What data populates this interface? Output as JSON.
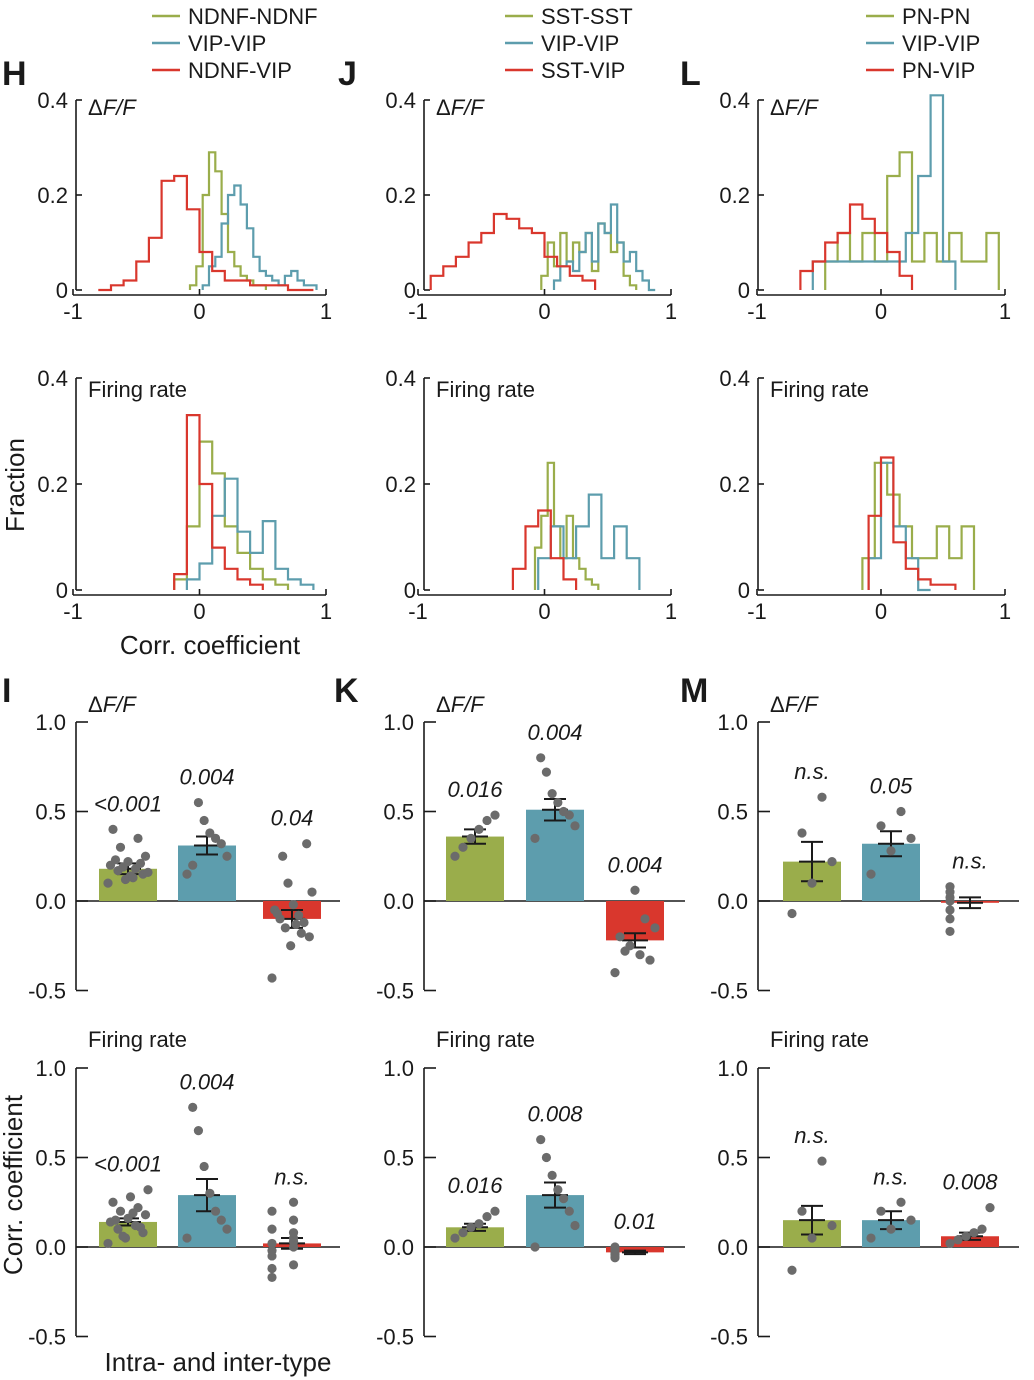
{
  "colors": {
    "green": "#9aad4b",
    "blue": "#5d9dad",
    "red": "#d9372d",
    "dot": "#6b6b6b",
    "axis": "#1a1a1a"
  },
  "figure": {
    "ylabel_hist": "Fraction",
    "xlabel_hist": "Corr. coefficient",
    "ylabel_bar": "Corr. coefficient",
    "xlabel_bar": "Intra- and inter-type"
  },
  "chart_data": [
    {
      "type": "line",
      "column": 0,
      "letter": "H",
      "subtitle": "ΔF/F",
      "legend": [
        "NDNF-NDNF",
        "VIP-VIP",
        "NDNF-VIP"
      ],
      "xlim": [
        -1,
        1
      ],
      "ylim": [
        0,
        0.4
      ],
      "xticks": [
        "-1",
        "0",
        "1"
      ],
      "yticks": [
        "0",
        "0.2",
        "0.4"
      ],
      "series": [
        {
          "name": "NDNF-NDNF",
          "color": "green",
          "x": [
            -0.05,
            0.0,
            0.05,
            0.1,
            0.15,
            0.2,
            0.25,
            0.3,
            0.35,
            0.4,
            0.45,
            0.5
          ],
          "values": [
            0.01,
            0.05,
            0.2,
            0.29,
            0.25,
            0.16,
            0.08,
            0.05,
            0.03,
            0.02,
            0.01,
            0.01
          ]
        },
        {
          "name": "VIP-VIP",
          "color": "blue",
          "x": [
            0.05,
            0.1,
            0.15,
            0.2,
            0.25,
            0.3,
            0.35,
            0.4,
            0.45,
            0.5,
            0.55,
            0.6,
            0.65,
            0.7,
            0.75,
            0.8,
            0.85,
            0.9
          ],
          "values": [
            0.01,
            0.05,
            0.07,
            0.14,
            0.2,
            0.22,
            0.18,
            0.13,
            0.07,
            0.04,
            0.03,
            0.02,
            0.01,
            0.03,
            0.04,
            0.02,
            0.01,
            0.01
          ]
        },
        {
          "name": "NDNF-VIP",
          "color": "red",
          "x": [
            -0.75,
            -0.65,
            -0.55,
            -0.45,
            -0.35,
            -0.25,
            -0.15,
            -0.05,
            0.05,
            0.15,
            0.25,
            0.35,
            0.45,
            0.55,
            0.65,
            0.75,
            0.85
          ],
          "values": [
            0.0,
            0.01,
            0.02,
            0.06,
            0.11,
            0.23,
            0.24,
            0.17,
            0.08,
            0.04,
            0.02,
            0.02,
            0.01,
            0.01,
            0.01,
            0.0,
            0.0
          ]
        }
      ]
    },
    {
      "type": "line",
      "column": 1,
      "letter": "J",
      "subtitle": "ΔF/F",
      "legend": [
        "SST-SST",
        "VIP-VIP",
        "SST-VIP"
      ],
      "xlim": [
        -1,
        1
      ],
      "ylim": [
        0,
        0.4
      ],
      "xticks": [
        "-1",
        "0",
        "1"
      ],
      "yticks": [
        "0",
        "0.2",
        "0.4"
      ],
      "series": [
        {
          "name": "SST-SST",
          "color": "green",
          "x": [
            0.0,
            0.05,
            0.1,
            0.15,
            0.2,
            0.25,
            0.3,
            0.35,
            0.4,
            0.45,
            0.5,
            0.55,
            0.6,
            0.65,
            0.7
          ],
          "values": [
            0.03,
            0.1,
            0.05,
            0.12,
            0.06,
            0.1,
            0.08,
            0.12,
            0.04,
            0.14,
            0.12,
            0.08,
            0.1,
            0.03,
            0.01
          ]
        },
        {
          "name": "VIP-VIP",
          "color": "blue",
          "x": [
            0.1,
            0.15,
            0.2,
            0.25,
            0.3,
            0.35,
            0.4,
            0.45,
            0.5,
            0.55,
            0.6,
            0.65,
            0.7,
            0.75,
            0.8,
            0.85
          ],
          "values": [
            0.02,
            0.05,
            0.06,
            0.04,
            0.08,
            0.12,
            0.06,
            0.14,
            0.12,
            0.18,
            0.1,
            0.06,
            0.08,
            0.04,
            0.02,
            0.0
          ]
        },
        {
          "name": "SST-VIP",
          "color": "red",
          "x": [
            -0.85,
            -0.75,
            -0.65,
            -0.55,
            -0.45,
            -0.35,
            -0.25,
            -0.15,
            -0.05,
            0.05,
            0.15,
            0.25,
            0.35
          ],
          "values": [
            0.03,
            0.05,
            0.07,
            0.1,
            0.12,
            0.16,
            0.15,
            0.13,
            0.12,
            0.07,
            0.05,
            0.03,
            0.02
          ]
        }
      ]
    },
    {
      "type": "line",
      "column": 2,
      "letter": "L",
      "subtitle": "ΔF/F",
      "legend": [
        "PN-PN",
        "VIP-VIP",
        "PN-VIP"
      ],
      "xlim": [
        -1,
        1
      ],
      "ylim": [
        0,
        0.4
      ],
      "xticks": [
        "-1",
        "0",
        "1"
      ],
      "yticks": [
        "0",
        "0.2",
        "0.4"
      ],
      "series": [
        {
          "name": "PN-PN",
          "color": "green",
          "x": [
            -0.4,
            -0.3,
            -0.2,
            -0.1,
            0.0,
            0.1,
            0.2,
            0.3,
            0.4,
            0.5,
            0.6,
            0.7,
            0.8,
            0.9
          ],
          "values": [
            0.06,
            0.12,
            0.06,
            0.12,
            0.06,
            0.24,
            0.29,
            0.06,
            0.12,
            0.06,
            0.12,
            0.06,
            0.06,
            0.12
          ]
        },
        {
          "name": "VIP-VIP",
          "color": "blue",
          "x": [
            -0.5,
            -0.4,
            0.15,
            0.25,
            0.35,
            0.45,
            0.55
          ],
          "values": [
            0.06,
            0.06,
            0.06,
            0.12,
            0.24,
            0.41,
            0.06
          ]
        },
        {
          "name": "PN-VIP",
          "color": "red",
          "x": [
            -0.6,
            -0.5,
            -0.4,
            -0.3,
            -0.2,
            -0.1,
            0.0,
            0.1,
            0.2
          ],
          "values": [
            0.04,
            0.06,
            0.1,
            0.12,
            0.18,
            0.15,
            0.12,
            0.08,
            0.03
          ]
        }
      ]
    },
    {
      "type": "line",
      "column": 0,
      "subtitle": "Firing rate",
      "xlim": [
        -1,
        1
      ],
      "ylim": [
        0,
        0.4
      ],
      "xticks": [
        "-1",
        "0",
        "1"
      ],
      "yticks": [
        "0",
        "0.2",
        "0.4"
      ],
      "series": [
        {
          "name": "NDNF-NDNF",
          "color": "green",
          "x": [
            -0.15,
            -0.05,
            0.05,
            0.15,
            0.25,
            0.35,
            0.45,
            0.55,
            0.65
          ],
          "values": [
            0.02,
            0.12,
            0.28,
            0.22,
            0.12,
            0.07,
            0.04,
            0.02,
            0.01
          ]
        },
        {
          "name": "VIP-VIP",
          "color": "blue",
          "x": [
            -0.05,
            0.05,
            0.15,
            0.25,
            0.35,
            0.45,
            0.55,
            0.65,
            0.75,
            0.85
          ],
          "values": [
            0.02,
            0.05,
            0.14,
            0.21,
            0.11,
            0.07,
            0.13,
            0.04,
            0.02,
            0.01
          ]
        },
        {
          "name": "NDNF-VIP",
          "color": "red",
          "x": [
            -0.15,
            -0.05,
            0.05,
            0.15,
            0.25,
            0.35,
            0.45
          ],
          "values": [
            0.03,
            0.33,
            0.2,
            0.08,
            0.04,
            0.02,
            0.01
          ]
        }
      ]
    },
    {
      "type": "line",
      "column": 1,
      "subtitle": "Firing rate",
      "xlim": [
        -1,
        1
      ],
      "ylim": [
        0,
        0.4
      ],
      "xticks": [
        "-1",
        "0",
        "1"
      ],
      "yticks": [
        "0",
        "0.2",
        "0.4"
      ],
      "series": [
        {
          "name": "SST-SST",
          "color": "green",
          "x": [
            -0.05,
            0.0,
            0.05,
            0.1,
            0.15,
            0.2,
            0.25,
            0.3,
            0.35,
            0.4
          ],
          "values": [
            0.08,
            0.14,
            0.24,
            0.12,
            0.06,
            0.14,
            0.06,
            0.04,
            0.02,
            0.01
          ]
        },
        {
          "name": "VIP-VIP",
          "color": "blue",
          "x": [
            0.0,
            0.1,
            0.2,
            0.3,
            0.4,
            0.5,
            0.6,
            0.7
          ],
          "values": [
            0.06,
            0.12,
            0.06,
            0.12,
            0.18,
            0.06,
            0.12,
            0.06
          ]
        },
        {
          "name": "SST-VIP",
          "color": "red",
          "x": [
            -0.2,
            -0.1,
            0.0,
            0.1,
            0.2
          ],
          "values": [
            0.04,
            0.12,
            0.15,
            0.06,
            0.02
          ]
        }
      ]
    },
    {
      "type": "line",
      "column": 2,
      "subtitle": "Firing rate",
      "xlim": [
        -1,
        1
      ],
      "ylim": [
        0,
        0.4
      ],
      "xticks": [
        "-1",
        "0",
        "1"
      ],
      "yticks": [
        "0",
        "0.2",
        "0.4"
      ],
      "series": [
        {
          "name": "PN-PN",
          "color": "green",
          "x": [
            -0.1,
            0.0,
            0.1,
            0.2,
            0.3,
            0.4,
            0.5,
            0.6,
            0.7
          ],
          "values": [
            0.06,
            0.24,
            0.18,
            0.12,
            0.06,
            0.06,
            0.12,
            0.06,
            0.12
          ]
        },
        {
          "name": "VIP-VIP",
          "color": "blue",
          "x": [
            -0.05,
            0.05,
            0.15,
            0.25,
            0.35
          ],
          "values": [
            0.06,
            0.24,
            0.12,
            0.06,
            0.0
          ]
        },
        {
          "name": "PN-VIP",
          "color": "red",
          "x": [
            -0.05,
            0.05,
            0.15,
            0.25,
            0.35,
            0.45,
            0.55
          ],
          "values": [
            0.14,
            0.25,
            0.09,
            0.04,
            0.02,
            0.01,
            0.01
          ]
        }
      ]
    },
    {
      "type": "bar",
      "column": 0,
      "letter": "I",
      "subtitle": "ΔF/F",
      "categories": [
        "NDNF-NDNF",
        "VIP-VIP",
        "NDNF-VIP"
      ],
      "ylim": [
        -0.5,
        1.0
      ],
      "yticks": [
        "-0.5",
        "0.0",
        "0.5",
        "1.0"
      ],
      "values": [
        0.18,
        0.31,
        -0.1
      ],
      "sem": [
        0.03,
        0.05,
        0.05
      ],
      "pvalues": [
        "<0.001",
        "0.004",
        "0.04"
      ],
      "points": [
        [
          0.1,
          0.12,
          0.15,
          0.17,
          0.18,
          0.2,
          0.22,
          0.25,
          0.3,
          0.35,
          0.4,
          0.14,
          0.16,
          0.19,
          0.21,
          0.23,
          0.13
        ],
        [
          0.15,
          0.25,
          0.32,
          0.35,
          0.38,
          0.45,
          0.55,
          0.2
        ],
        [
          -0.43,
          -0.25,
          -0.2,
          -0.15,
          -0.12,
          -0.1,
          -0.08,
          -0.05,
          -0.02,
          0.05,
          0.1,
          0.32,
          0.25,
          -0.18,
          -0.07,
          -0.13
        ]
      ]
    },
    {
      "type": "bar",
      "column": 1,
      "letter": "K",
      "subtitle": "ΔF/F",
      "categories": [
        "SST-SST",
        "VIP-VIP",
        "SST-VIP"
      ],
      "ylim": [
        -0.5,
        1.0
      ],
      "yticks": [
        "-0.5",
        "0.0",
        "0.5",
        "1.0"
      ],
      "values": [
        0.36,
        0.51,
        -0.22
      ],
      "sem": [
        0.04,
        0.06,
        0.04
      ],
      "pvalues": [
        "0.016",
        "0.004",
        "0.004"
      ],
      "points": [
        [
          0.25,
          0.3,
          0.35,
          0.4,
          0.45,
          0.48
        ],
        [
          0.35,
          0.42,
          0.48,
          0.5,
          0.55,
          0.6,
          0.72,
          0.8
        ],
        [
          -0.4,
          -0.33,
          -0.3,
          -0.25,
          -0.2,
          -0.15,
          -0.1,
          0.06,
          -0.28
        ]
      ]
    },
    {
      "type": "bar",
      "column": 2,
      "letter": "M",
      "subtitle": "ΔF/F",
      "categories": [
        "PN-PN",
        "VIP-VIP",
        "PN-VIP"
      ],
      "ylim": [
        -0.5,
        1.0
      ],
      "yticks": [
        "-0.5",
        "0.0",
        "0.5",
        "1.0"
      ],
      "values": [
        0.22,
        0.32,
        -0.01
      ],
      "sem": [
        0.11,
        0.07,
        0.03
      ],
      "pvalues": [
        "n.s.",
        "0.05",
        "n.s."
      ],
      "points": [
        [
          -0.07,
          0.1,
          0.22,
          0.38,
          0.58
        ],
        [
          0.15,
          0.28,
          0.35,
          0.42,
          0.5
        ],
        [
          -0.17,
          -0.1,
          -0.05,
          0.0,
          0.02,
          0.05,
          0.08
        ]
      ]
    },
    {
      "type": "bar",
      "column": 0,
      "subtitle": "Firing rate",
      "categories": [
        "NDNF-NDNF",
        "VIP-VIP",
        "NDNF-VIP"
      ],
      "ylim": [
        -0.5,
        1.0
      ],
      "yticks": [
        "-0.5",
        "0.0",
        "0.5",
        "1.0"
      ],
      "values": [
        0.14,
        0.29,
        0.02
      ],
      "sem": [
        0.02,
        0.09,
        0.03
      ],
      "pvalues": [
        "<0.001",
        "0.004",
        "n.s."
      ],
      "points": [
        [
          0.02,
          0.05,
          0.08,
          0.1,
          0.12,
          0.14,
          0.16,
          0.18,
          0.2,
          0.22,
          0.25,
          0.28,
          0.32,
          0.06,
          0.11,
          0.15,
          0.19
        ],
        [
          0.05,
          0.1,
          0.15,
          0.2,
          0.3,
          0.45,
          0.65,
          0.78
        ],
        [
          -0.17,
          -0.1,
          -0.05,
          0.0,
          0.02,
          0.05,
          0.1,
          0.15,
          0.2,
          0.25,
          -0.12,
          0.03,
          -0.02,
          0.08
        ]
      ]
    },
    {
      "type": "bar",
      "column": 1,
      "subtitle": "Firing rate",
      "categories": [
        "SST-SST",
        "VIP-VIP",
        "SST-VIP"
      ],
      "ylim": [
        -0.5,
        1.0
      ],
      "yticks": [
        "-0.5",
        "0.0",
        "0.5",
        "1.0"
      ],
      "values": [
        0.11,
        0.29,
        -0.03
      ],
      "sem": [
        0.02,
        0.07,
        0.01
      ],
      "pvalues": [
        "0.016",
        "0.008",
        "0.01"
      ],
      "points": [
        [
          0.05,
          0.08,
          0.11,
          0.13,
          0.17,
          0.2
        ],
        [
          0.0,
          0.12,
          0.2,
          0.27,
          0.32,
          0.4,
          0.5,
          0.6
        ],
        [
          -0.06,
          -0.05,
          -0.03,
          -0.02,
          0.0,
          -0.04,
          -0.01
        ]
      ]
    },
    {
      "type": "bar",
      "column": 2,
      "subtitle": "Firing rate",
      "categories": [
        "PN-PN",
        "VIP-VIP",
        "PN-VIP"
      ],
      "ylim": [
        -0.5,
        1.0
      ],
      "yticks": [
        "-0.5",
        "0.0",
        "0.5",
        "1.0"
      ],
      "values": [
        0.15,
        0.15,
        0.06
      ],
      "sem": [
        0.08,
        0.05,
        0.02
      ],
      "pvalues": [
        "n.s.",
        "n.s.",
        "0.008"
      ],
      "points": [
        [
          -0.13,
          0.05,
          0.12,
          0.2,
          0.48
        ],
        [
          0.05,
          0.1,
          0.15,
          0.2,
          0.25
        ],
        [
          0.02,
          0.04,
          0.06,
          0.08,
          0.1,
          0.22
        ]
      ]
    }
  ]
}
